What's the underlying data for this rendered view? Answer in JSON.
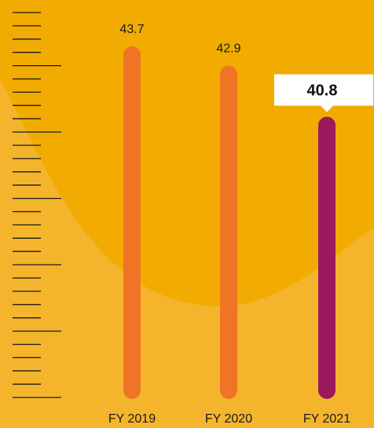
{
  "chart_data": {
    "type": "bar",
    "categories": [
      "FY 2019",
      "FY 2020",
      "FY 2021"
    ],
    "values": [
      43.7,
      42.9,
      40.8
    ],
    "value_labels": [
      "43.7",
      "42.9",
      "40.8"
    ],
    "highlight_index": 2,
    "title": "",
    "xlabel": "",
    "ylabel": "",
    "grid": false,
    "legend": "none"
  },
  "colors": {
    "background": "#f4b52c",
    "background_overlay": "#f2ab00",
    "bar": "#f07425",
    "bar_highlight": "#9c1a5c",
    "highlight_box": "#ffffff",
    "ruler": "#1a1a1a"
  }
}
